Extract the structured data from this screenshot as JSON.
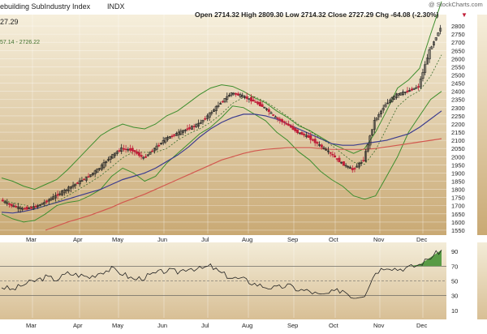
{
  "header": {
    "symbol_fragment": "ebuilding SubIndustry Index",
    "exchange": "INDX",
    "watermark": "@ StockCharts.com",
    "ohlc": "Open 2714.32  High 2809.30  Low 2714.32  Close 2727.29  Chg -64.08 (-2.30%)",
    "last_value": "27.29",
    "ma_legend": "57.14 - 2726.22",
    "flag_symbol": "▼"
  },
  "colors": {
    "bg_top": "#f6efdc",
    "bg_bottom": "#c9a974",
    "bollinger": "#3e8e2e",
    "ma_short": "#3c3c8e",
    "ma_long": "#d2584f",
    "ma_fast_dotted": "#3a6b2a",
    "candle": "#222222",
    "candle_down": "#c0203a",
    "rsi_line": "#222222",
    "rsi_fill": "#3e8e2e",
    "grid": "#ffffff"
  },
  "chart_data": {
    "type": "candlestick",
    "price_axis": {
      "ticks": [
        2800,
        2750,
        2700,
        2650,
        2600,
        2550,
        2500,
        2450,
        2400,
        2350,
        2300,
        2250,
        2200,
        2150,
        2100,
        2050,
        2000,
        1950,
        1900,
        1850,
        1800,
        1750,
        1700,
        1650,
        1600,
        1550
      ],
      "ylim": [
        1530,
        2830
      ]
    },
    "months": [
      "Mar",
      "Apr",
      "May",
      "Jun",
      "Jul",
      "Aug",
      "Sep",
      "Oct",
      "Nov",
      "Dec"
    ],
    "price_close": [
      1735,
      1700,
      1680,
      1690,
      1720,
      1760,
      1800,
      1840,
      1880,
      1930,
      2000,
      2050,
      2040,
      1990,
      2050,
      2110,
      2140,
      2170,
      2200,
      2260,
      2330,
      2390,
      2370,
      2340,
      2300,
      2240,
      2200,
      2150,
      2120,
      2070,
      2020,
      1960,
      1920,
      1980,
      2220,
      2320,
      2380,
      2400,
      2430,
      2650,
      2790
    ],
    "upper_band": [
      1870,
      1850,
      1820,
      1800,
      1830,
      1860,
      1920,
      1990,
      2060,
      2130,
      2170,
      2200,
      2180,
      2170,
      2200,
      2250,
      2280,
      2330,
      2380,
      2420,
      2440,
      2430,
      2400,
      2360,
      2330,
      2280,
      2240,
      2190,
      2160,
      2120,
      2080,
      2050,
      2020,
      2050,
      2150,
      2280,
      2420,
      2470,
      2540,
      2750,
      2950
    ],
    "lower_band": [
      1650,
      1620,
      1600,
      1610,
      1650,
      1700,
      1720,
      1730,
      1760,
      1800,
      1880,
      1930,
      1900,
      1850,
      1880,
      1960,
      2020,
      2080,
      2140,
      2180,
      2240,
      2310,
      2300,
      2260,
      2220,
      2150,
      2100,
      2030,
      1980,
      1910,
      1860,
      1820,
      1760,
      1740,
      1760,
      1880,
      2000,
      2150,
      2250,
      2350,
      2400
    ],
    "ma_short": [
      1660,
      1655,
      1665,
      1680,
      1700,
      1720,
      1740,
      1760,
      1780,
      1800,
      1830,
      1860,
      1880,
      1900,
      1930,
      1970,
      2010,
      2060,
      2120,
      2170,
      2210,
      2240,
      2260,
      2260,
      2250,
      2230,
      2200,
      2170,
      2140,
      2110,
      2080,
      2070,
      2070,
      2080,
      2090,
      2100,
      2120,
      2140,
      2180,
      2230,
      2280
    ],
    "ma_long": [
      null,
      null,
      null,
      null,
      1550,
      1575,
      1600,
      1620,
      1640,
      1665,
      1690,
      1720,
      1745,
      1770,
      1800,
      1830,
      1860,
      1890,
      1920,
      1950,
      1980,
      2000,
      2020,
      2035,
      2045,
      2050,
      2055,
      2055,
      2055,
      2050,
      2045,
      2045,
      2045,
      2045,
      2050,
      2060,
      2070,
      2080,
      2090,
      2100,
      2110
    ],
    "rsi": {
      "ticks": [
        90,
        70,
        50,
        30,
        10
      ],
      "ylim": [
        0,
        100
      ],
      "reference_lines": [
        70,
        50,
        30
      ],
      "values": [
        42,
        38,
        45,
        50,
        55,
        52,
        60,
        58,
        55,
        62,
        66,
        60,
        52,
        55,
        60,
        64,
        62,
        68,
        66,
        70,
        60,
        54,
        52,
        46,
        42,
        40,
        44,
        38,
        36,
        30,
        34,
        38,
        28,
        32,
        62,
        70,
        66,
        68,
        72,
        82,
        92
      ]
    }
  }
}
